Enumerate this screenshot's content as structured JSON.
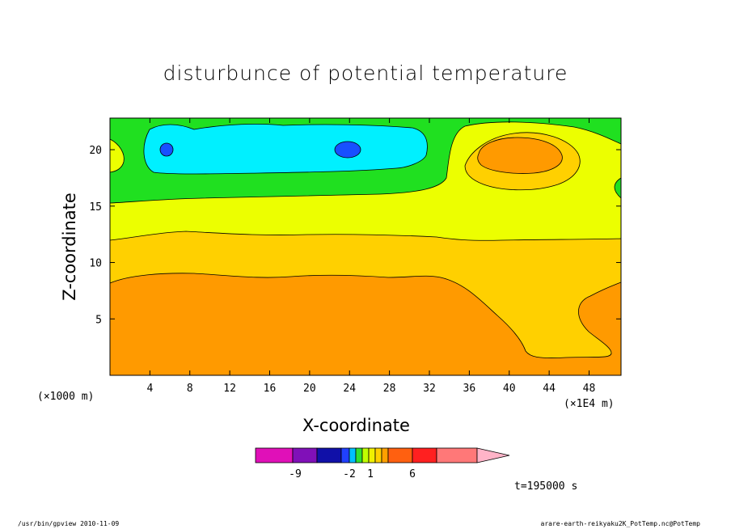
{
  "chart_data": {
    "type": "heatmap",
    "title": "disturbunce of potential temperature",
    "xlabel": "X-coordinate",
    "ylabel": "Z-coordinate",
    "x_unit": "(×1000 m)",
    "x_scale_note": "(×1E4 m)",
    "xticks": [
      4,
      8,
      12,
      16,
      20,
      24,
      28,
      32,
      36,
      40,
      44,
      48
    ],
    "yticks": [
      5,
      10,
      15,
      20
    ],
    "xlim": [
      0,
      51.2
    ],
    "ylim": [
      0,
      22.8
    ],
    "time_label": "t=195000 s",
    "colorbar": {
      "labels": [
        {
          "value": -9,
          "text": "-9"
        },
        {
          "value": -2,
          "text": "-2"
        },
        {
          "value": 1,
          "text": "1"
        },
        {
          "value": 6,
          "text": "6"
        }
      ],
      "colors": [
        "#e010b8",
        "#8010b8",
        "#1010a8",
        "#2040ff",
        "#00c0ff",
        "#30e030",
        "#c0ff00",
        "#f0f000",
        "#ffd000",
        "#ffa000",
        "#ff6010",
        "#ff2020",
        "#ff7878"
      ],
      "extend_color": "#ffb4c8"
    },
    "regions": [
      {
        "name": "green",
        "color": "#20e020"
      },
      {
        "name": "cyan",
        "color": "#00f0ff"
      },
      {
        "name": "blue",
        "color": "#1850ff"
      },
      {
        "name": "yellow-green",
        "color": "#ecff00"
      },
      {
        "name": "gold",
        "color": "#ffd000"
      },
      {
        "name": "orange",
        "color": "#ff9a00"
      }
    ]
  },
  "footer": {
    "left": "/usr/bin/gpview  2010-11-09",
    "right": "arare-earth-reikyaku2K_PotTemp.nc@PotTemp"
  }
}
